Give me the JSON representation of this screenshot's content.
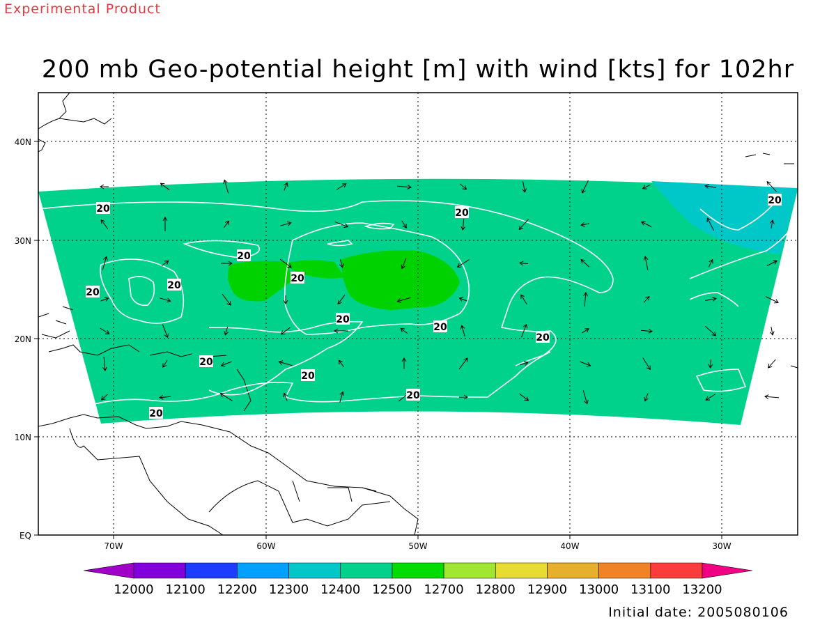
{
  "header": {
    "experimental": "Experimental Product",
    "title": "200 mb Geo-potential height [m] with wind [kts] for 102hr"
  },
  "footer": {
    "initial_date": "Initial date: 2005080106"
  },
  "map": {
    "lon_labels": [
      "70W",
      "60W",
      "50W",
      "40W",
      "30W"
    ],
    "lat_labels": [
      "40N",
      "30N",
      "20N",
      "10N",
      "EQ"
    ],
    "contour_label_value": "20",
    "contour_labels": [
      "20",
      "20",
      "20",
      "20",
      "20",
      "20",
      "20",
      "20",
      "20",
      "20",
      "20",
      "20"
    ],
    "fill_colors": {
      "base_12400": "#00d28c",
      "core_12500": "#00d200",
      "cap_12300": "#00c8c8"
    }
  },
  "colorbar": {
    "labels": [
      "12000",
      "12100",
      "12200",
      "12300",
      "12400",
      "12500",
      "12700",
      "12800",
      "12900",
      "13000",
      "13100",
      "13200"
    ],
    "colors": [
      "#a000c8",
      "#8200dc",
      "#1e3cff",
      "#00a0ff",
      "#00c8c8",
      "#00d28c",
      "#00dc00",
      "#a0e632",
      "#e6dc32",
      "#e6af2d",
      "#f08228",
      "#fa3c3c",
      "#f00082"
    ]
  }
}
